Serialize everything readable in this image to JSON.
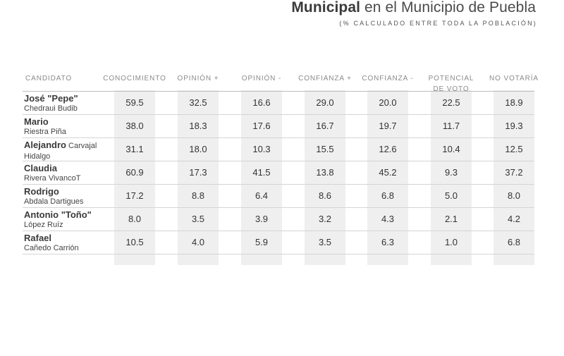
{
  "header": {
    "title_bold": "Municipal",
    "title_rest": " en el Municipio de Puebla",
    "subtitle": "(% CALCULADO ENTRE TODA LA POBLACIÓN)"
  },
  "chart_data": {
    "type": "table",
    "candidate_header": "CANDIDATO",
    "columns": [
      "CONOCIMIENTO",
      "OPINIÓN +",
      "OPINIÓN -",
      "CONFIANZA +",
      "CONFIANZA -",
      "POTENCIAL DE VOTO",
      "NO VOTARÍA"
    ],
    "columns_split": [
      [
        "CONOCIMIENTO"
      ],
      [
        "OPINIÓN +"
      ],
      [
        "OPINIÓN -"
      ],
      [
        "CONFIANZA +"
      ],
      [
        "CONFIANZA -"
      ],
      [
        "POTENCIAL",
        "DE VOTO"
      ],
      [
        "NO VOTARÍA"
      ]
    ],
    "rows": [
      {
        "first": "José \"Pepe\"",
        "rest": "",
        "last": "Chedraui Budib",
        "values": [
          "59.5",
          "32.5",
          "16.6",
          "29.0",
          "20.0",
          "22.5",
          "18.9"
        ]
      },
      {
        "first": "Mario",
        "rest": "",
        "last": "Riestra Piña",
        "values": [
          "38.0",
          "18.3",
          "17.6",
          "16.7",
          "19.7",
          "11.7",
          "19.3"
        ]
      },
      {
        "first": "Alejandro",
        "rest": " Carvajal",
        "last": "Hidalgo",
        "values": [
          "31.1",
          "18.0",
          "10.3",
          "15.5",
          "12.6",
          "10.4",
          "12.5"
        ]
      },
      {
        "first": "Claudia",
        "rest": "",
        "last": "Rivera VivancoT",
        "values": [
          "60.9",
          "17.3",
          "41.5",
          "13.8",
          "45.2",
          "9.3",
          "37.2"
        ]
      },
      {
        "first": "Rodrigo",
        "rest": "",
        "last": "Abdala Dartigues",
        "values": [
          "17.2",
          "8.8",
          "6.4",
          "8.6",
          "6.8",
          "5.0",
          "8.0"
        ]
      },
      {
        "first": "Antonio \"Toño\"",
        "rest": "",
        "last": "López Ruíz",
        "values": [
          "8.0",
          "3.5",
          "3.9",
          "3.2",
          "4.3",
          "2.1",
          "4.2"
        ]
      },
      {
        "first": "Rafael",
        "rest": "",
        "last": "Cañedo Carrión",
        "values": [
          "10.5",
          "4.0",
          "5.9",
          "3.5",
          "6.3",
          "1.0",
          "6.8"
        ]
      }
    ]
  }
}
